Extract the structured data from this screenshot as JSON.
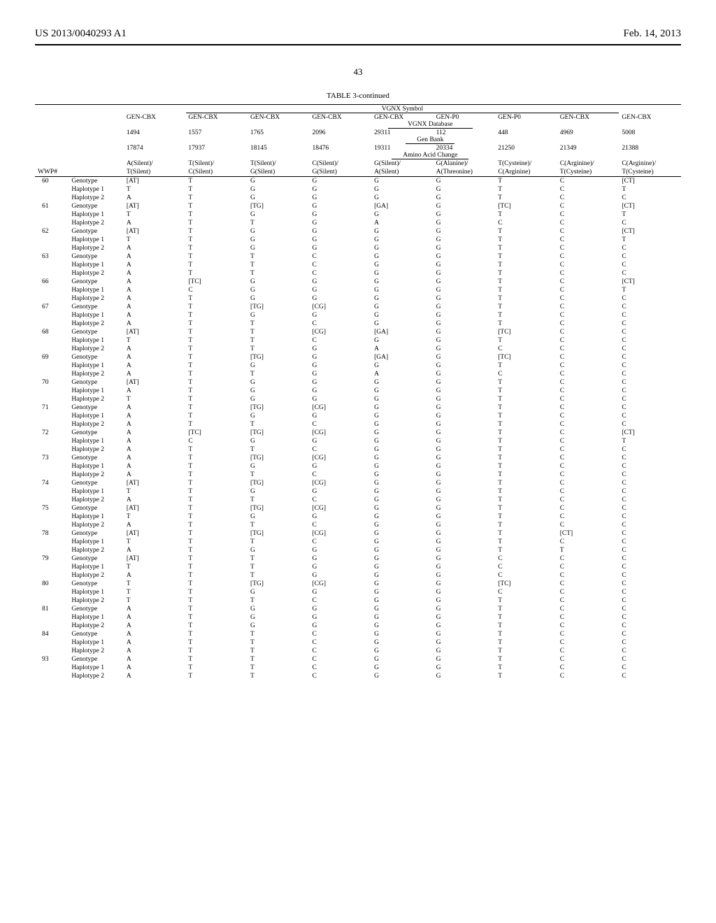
{
  "header": {
    "left": "US 2013/0040293 A1",
    "right": "Feb. 14, 2013"
  },
  "page_number": "43",
  "table_title": "TABLE 3-continued",
  "vgnx_symbol_label": "VGNX Symbol",
  "vgnx_database_label": "VGNX Database",
  "genbank_label": "Gen Bank",
  "amino_acid_label": "Amino Acid Change",
  "wwp_label": "WWP#",
  "row1": [
    "GEN-CBX",
    "GEN-CBX",
    "GEN-CBX",
    "GEN-CBX",
    "GEN-CBX",
    "GEN-P0",
    "GEN-P0",
    "GEN-CBX",
    "GEN-CBX"
  ],
  "row2": [
    "1494",
    "1557",
    "1765",
    "2096",
    "29311",
    "112",
    "448",
    "4969",
    "5008"
  ],
  "row3": [
    "17874",
    "17937",
    "18145",
    "18476",
    "19311",
    "20334",
    "21250",
    "21349",
    "21388"
  ],
  "row4_top": [
    "A(Silent)/",
    "T(Silent)/",
    "T(Silent)/",
    "C(Silent)/",
    "G(Silent)/",
    "G(Alanine)/",
    "T(Cysteine)/",
    "C(Arginine)/",
    "C(Arginine)/"
  ],
  "row4_bot": [
    "T(Silent)",
    "C(Silent)",
    "G(Silent)",
    "G(Silent)",
    "A(Silent)",
    "A(Threonine)",
    "C(Arginine)",
    "T(Cysteine)",
    "T(Cysteine)"
  ],
  "rows": [
    {
      "wwp": "60",
      "g": [
        "[AT]",
        "T",
        "G",
        "G",
        "G",
        "G",
        "T",
        "C",
        "[CT]"
      ],
      "h1": [
        "T",
        "T",
        "G",
        "G",
        "G",
        "G",
        "T",
        "C",
        "T"
      ],
      "h2": [
        "A",
        "T",
        "G",
        "G",
        "G",
        "G",
        "T",
        "C",
        "C"
      ]
    },
    {
      "wwp": "61",
      "g": [
        "[AT]",
        "T",
        "[TG]",
        "G",
        "[GA]",
        "G",
        "[TC]",
        "C",
        "[CT]"
      ],
      "h1": [
        "T",
        "T",
        "G",
        "G",
        "G",
        "G",
        "T",
        "C",
        "T"
      ],
      "h2": [
        "A",
        "T",
        "T",
        "G",
        "A",
        "G",
        "C",
        "C",
        "C"
      ]
    },
    {
      "wwp": "62",
      "g": [
        "[AT]",
        "T",
        "G",
        "G",
        "G",
        "G",
        "T",
        "C",
        "[CT]"
      ],
      "h1": [
        "T",
        "T",
        "G",
        "G",
        "G",
        "G",
        "T",
        "C",
        "T"
      ],
      "h2": [
        "A",
        "T",
        "G",
        "G",
        "G",
        "G",
        "T",
        "C",
        "C"
      ]
    },
    {
      "wwp": "63",
      "g": [
        "A",
        "T",
        "T",
        "C",
        "G",
        "G",
        "T",
        "C",
        "C"
      ],
      "h1": [
        "A",
        "T",
        "T",
        "C",
        "G",
        "G",
        "T",
        "C",
        "C"
      ],
      "h2": [
        "A",
        "T",
        "T",
        "C",
        "G",
        "G",
        "T",
        "C",
        "C"
      ]
    },
    {
      "wwp": "66",
      "g": [
        "A",
        "[TC]",
        "G",
        "G",
        "G",
        "G",
        "T",
        "C",
        "[CT]"
      ],
      "h1": [
        "A",
        "C",
        "G",
        "G",
        "G",
        "G",
        "T",
        "C",
        "T"
      ],
      "h2": [
        "A",
        "T",
        "G",
        "G",
        "G",
        "G",
        "T",
        "C",
        "C"
      ]
    },
    {
      "wwp": "67",
      "g": [
        "A",
        "T",
        "[TG]",
        "[CG]",
        "G",
        "G",
        "T",
        "C",
        "C"
      ],
      "h1": [
        "A",
        "T",
        "G",
        "G",
        "G",
        "G",
        "T",
        "C",
        "C"
      ],
      "h2": [
        "A",
        "T",
        "T",
        "C",
        "G",
        "G",
        "T",
        "C",
        "C"
      ]
    },
    {
      "wwp": "68",
      "g": [
        "[AT]",
        "T",
        "T",
        "[CG]",
        "[GA]",
        "G",
        "[TC]",
        "C",
        "C"
      ],
      "h1": [
        "T",
        "T",
        "T",
        "C",
        "G",
        "G",
        "T",
        "C",
        "C"
      ],
      "h2": [
        "A",
        "T",
        "T",
        "G",
        "A",
        "G",
        "C",
        "C",
        "C"
      ]
    },
    {
      "wwp": "69",
      "g": [
        "A",
        "T",
        "[TG]",
        "G",
        "[GA]",
        "G",
        "[TC]",
        "C",
        "C"
      ],
      "h1": [
        "A",
        "T",
        "G",
        "G",
        "G",
        "G",
        "T",
        "C",
        "C"
      ],
      "h2": [
        "A",
        "T",
        "T",
        "G",
        "A",
        "G",
        "C",
        "C",
        "C"
      ]
    },
    {
      "wwp": "70",
      "g": [
        "[AT]",
        "T",
        "G",
        "G",
        "G",
        "G",
        "T",
        "C",
        "C"
      ],
      "h1": [
        "A",
        "T",
        "G",
        "G",
        "G",
        "G",
        "T",
        "C",
        "C"
      ],
      "h2": [
        "T",
        "T",
        "G",
        "G",
        "G",
        "G",
        "T",
        "C",
        "C"
      ]
    },
    {
      "wwp": "71",
      "g": [
        "A",
        "T",
        "[TG]",
        "[CG]",
        "G",
        "G",
        "T",
        "C",
        "C"
      ],
      "h1": [
        "A",
        "T",
        "G",
        "G",
        "G",
        "G",
        "T",
        "C",
        "C"
      ],
      "h2": [
        "A",
        "T",
        "T",
        "C",
        "G",
        "G",
        "T",
        "C",
        "C"
      ]
    },
    {
      "wwp": "72",
      "g": [
        "A",
        "[TC]",
        "[TG]",
        "[CG]",
        "G",
        "G",
        "T",
        "C",
        "[CT]"
      ],
      "h1": [
        "A",
        "C",
        "G",
        "G",
        "G",
        "G",
        "T",
        "C",
        "T"
      ],
      "h2": [
        "A",
        "T",
        "T",
        "C",
        "G",
        "G",
        "T",
        "C",
        "C"
      ]
    },
    {
      "wwp": "73",
      "g": [
        "A",
        "T",
        "[TG]",
        "[CG]",
        "G",
        "G",
        "T",
        "C",
        "C"
      ],
      "h1": [
        "A",
        "T",
        "G",
        "G",
        "G",
        "G",
        "T",
        "C",
        "C"
      ],
      "h2": [
        "A",
        "T",
        "T",
        "C",
        "G",
        "G",
        "T",
        "C",
        "C"
      ]
    },
    {
      "wwp": "74",
      "g": [
        "[AT]",
        "T",
        "[TG]",
        "[CG]",
        "G",
        "G",
        "T",
        "C",
        "C"
      ],
      "h1": [
        "T",
        "T",
        "G",
        "G",
        "G",
        "G",
        "T",
        "C",
        "C"
      ],
      "h2": [
        "A",
        "T",
        "T",
        "C",
        "G",
        "G",
        "T",
        "C",
        "C"
      ]
    },
    {
      "wwp": "75",
      "g": [
        "[AT]",
        "T",
        "[TG]",
        "[CG]",
        "G",
        "G",
        "T",
        "C",
        "C"
      ],
      "h1": [
        "T",
        "T",
        "G",
        "G",
        "G",
        "G",
        "T",
        "C",
        "C"
      ],
      "h2": [
        "A",
        "T",
        "T",
        "C",
        "G",
        "G",
        "T",
        "C",
        "C"
      ]
    },
    {
      "wwp": "78",
      "g": [
        "[AT]",
        "T",
        "[TG]",
        "[CG]",
        "G",
        "G",
        "T",
        "[CT]",
        "C"
      ],
      "h1": [
        "T",
        "T",
        "T",
        "C",
        "G",
        "G",
        "T",
        "C",
        "C"
      ],
      "h2": [
        "A",
        "T",
        "G",
        "G",
        "G",
        "G",
        "T",
        "T",
        "C"
      ]
    },
    {
      "wwp": "79",
      "g": [
        "[AT]",
        "T",
        "T",
        "G",
        "G",
        "G",
        "C",
        "C",
        "C"
      ],
      "h1": [
        "T",
        "T",
        "T",
        "G",
        "G",
        "G",
        "C",
        "C",
        "C"
      ],
      "h2": [
        "A",
        "T",
        "T",
        "G",
        "G",
        "G",
        "C",
        "C",
        "C"
      ]
    },
    {
      "wwp": "80",
      "g": [
        "T",
        "T",
        "[TG]",
        "[CG]",
        "G",
        "G",
        "[TC]",
        "C",
        "C"
      ],
      "h1": [
        "T",
        "T",
        "G",
        "G",
        "G",
        "G",
        "C",
        "C",
        "C"
      ],
      "h2": [
        "T",
        "T",
        "T",
        "C",
        "G",
        "G",
        "T",
        "C",
        "C"
      ]
    },
    {
      "wwp": "81",
      "g": [
        "A",
        "T",
        "G",
        "G",
        "G",
        "G",
        "T",
        "C",
        "C"
      ],
      "h1": [
        "A",
        "T",
        "G",
        "G",
        "G",
        "G",
        "T",
        "C",
        "C"
      ],
      "h2": [
        "A",
        "T",
        "G",
        "G",
        "G",
        "G",
        "T",
        "C",
        "C"
      ]
    },
    {
      "wwp": "84",
      "g": [
        "A",
        "T",
        "T",
        "C",
        "G",
        "G",
        "T",
        "C",
        "C"
      ],
      "h1": [
        "A",
        "T",
        "T",
        "C",
        "G",
        "G",
        "T",
        "C",
        "C"
      ],
      "h2": [
        "A",
        "T",
        "T",
        "C",
        "G",
        "G",
        "T",
        "C",
        "C"
      ]
    },
    {
      "wwp": "93",
      "g": [
        "A",
        "T",
        "T",
        "C",
        "G",
        "G",
        "T",
        "C",
        "C"
      ],
      "h1": [
        "A",
        "T",
        "T",
        "C",
        "G",
        "G",
        "T",
        "C",
        "C"
      ],
      "h2": [
        "A",
        "T",
        "T",
        "C",
        "G",
        "G",
        "T",
        "C",
        "C"
      ]
    }
  ],
  "row_types": {
    "genotype": "Genotype",
    "haplotype1": "Haplotype 1",
    "haplotype2": "Haplotype 2"
  }
}
